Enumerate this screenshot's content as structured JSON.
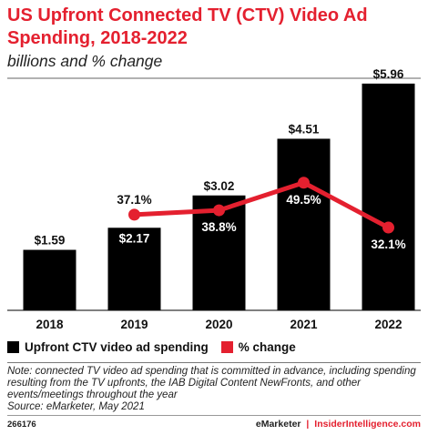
{
  "chart_data": {
    "type": "bar",
    "title": "US Upfront Connected TV (CTV) Video Ad Spending, 2018-2022",
    "subtitle": "billions and % change",
    "categories": [
      "2018",
      "2019",
      "2020",
      "2021",
      "2022"
    ],
    "series": [
      {
        "name": "Upfront CTV video ad spending",
        "type": "bar",
        "values": [
          1.59,
          2.17,
          3.02,
          4.51,
          5.96
        ],
        "labels": [
          "$1.59",
          "$2.17",
          "$3.02",
          "$4.51",
          "$5.96"
        ],
        "color": "#000000"
      },
      {
        "name": "% change",
        "type": "line",
        "values": [
          null,
          37.1,
          38.8,
          49.5,
          32.1
        ],
        "labels": [
          "",
          "37.1%",
          "38.8%",
          "49.5%",
          "32.1%"
        ],
        "color": "#e4202f"
      }
    ],
    "bar_ylim": [
      0,
      6.1
    ],
    "line_ylim": [
      0,
      90
    ],
    "legend_position": "bottom-left",
    "grid": false
  },
  "note": "Note: connected TV video ad spending that is committed in advance, including spending resulting from the TV upfronts, the IAB Digital Content NewFronts, and other events/meetings throughout the year",
  "source": "Source: eMarketer, May 2021",
  "chart_id": "266176",
  "brand": {
    "emarketer": "eMarketer",
    "separator": "|",
    "insider": "InsiderIntelligence.com"
  }
}
